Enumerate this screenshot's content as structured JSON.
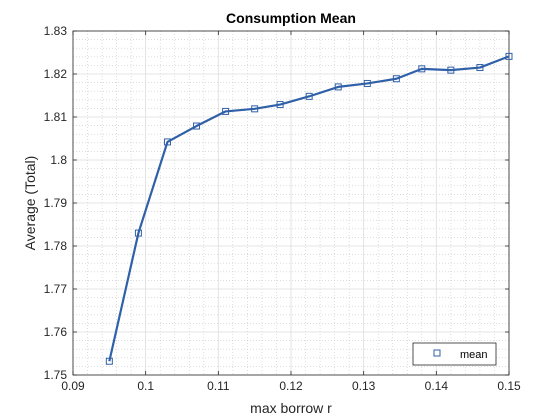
{
  "chart_data": {
    "type": "line",
    "title": "Consumption Mean",
    "xlabel": "max borrow r",
    "ylabel": "Average (Total)",
    "xlim": [
      0.09,
      0.15
    ],
    "ylim": [
      1.75,
      1.83
    ],
    "xticks": [
      "0.09",
      "0.1",
      "0.11",
      "0.12",
      "0.13",
      "0.14",
      "0.15"
    ],
    "yticks": [
      "1.75",
      "1.76",
      "1.77",
      "1.78",
      "1.79",
      "1.8",
      "1.81",
      "1.82",
      "1.83"
    ],
    "grid": true,
    "minor_grid": true,
    "legend_position": "bottom-right",
    "series": [
      {
        "name": "mean",
        "marker": "square",
        "color": "#3060a8",
        "x": [
          0.095,
          0.099,
          0.103,
          0.107,
          0.111,
          0.115,
          0.1185,
          0.1225,
          0.1265,
          0.1305,
          0.1345,
          0.138,
          0.142,
          0.146,
          0.15
        ],
        "y": [
          1.7532,
          1.783,
          1.8042,
          1.8079,
          1.8113,
          1.8119,
          1.8129,
          1.8148,
          1.817,
          1.8178,
          1.8189,
          1.8212,
          1.8209,
          1.8215,
          1.8241
        ]
      }
    ]
  }
}
